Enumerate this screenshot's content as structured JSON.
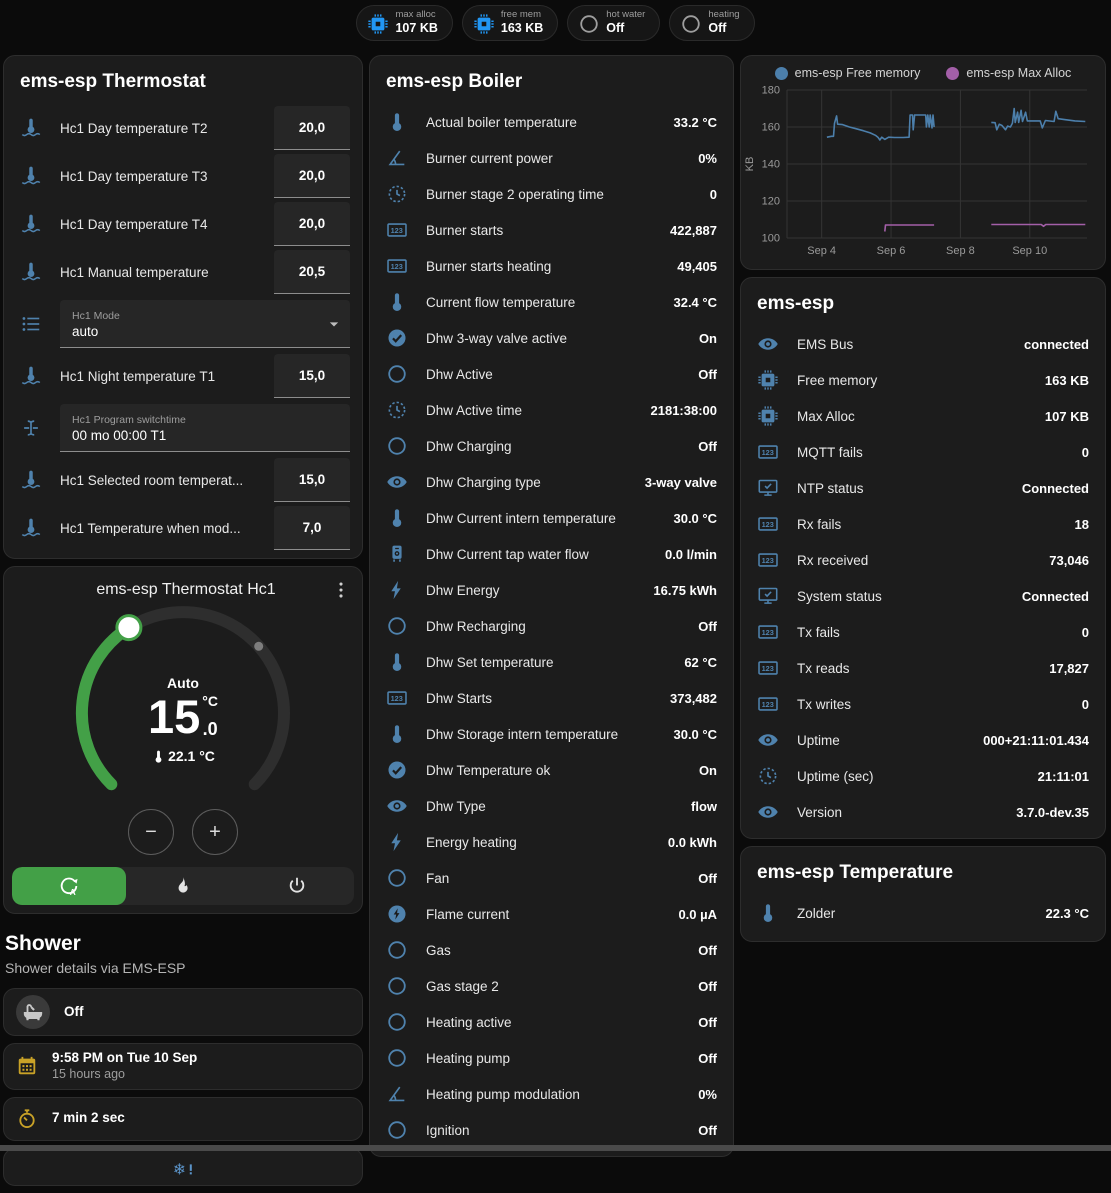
{
  "colors": {
    "accent_green": "#43a047",
    "icon_blue": "#4f82ad",
    "chip_blue": "#2196f3",
    "icon_yellow": "#c9a227",
    "chart_blue": "#4c7fab",
    "chart_purple": "#a35fa8"
  },
  "header": {
    "chips": [
      {
        "icon": "chip",
        "icon_color": "#2196f3",
        "label": "max alloc",
        "value": "107 KB"
      },
      {
        "icon": "chip",
        "icon_color": "#2196f3",
        "label": "free mem",
        "value": "163 KB"
      },
      {
        "icon": "circle",
        "icon_color": "#9e9e9e",
        "label": "hot water",
        "value": "Off"
      },
      {
        "icon": "circle",
        "icon_color": "#9e9e9e",
        "label": "heating",
        "value": "Off"
      }
    ]
  },
  "thermostat": {
    "title": "ems-esp Thermostat",
    "rows_top": [
      {
        "icon": "thermometer-water",
        "label": "Hc1 Day temperature T2",
        "value": "20,0"
      },
      {
        "icon": "thermometer-water",
        "label": "Hc1 Day temperature T3",
        "value": "20,0"
      },
      {
        "icon": "thermometer-water",
        "label": "Hc1 Day temperature T4",
        "value": "20,0"
      },
      {
        "icon": "thermometer-water",
        "label": "Hc1 Manual temperature",
        "value": "20,5"
      }
    ],
    "mode": {
      "label": "Hc1 Mode",
      "value": "auto"
    },
    "rows_mid": [
      {
        "icon": "thermometer-water",
        "label": "Hc1 Night temperature T1",
        "value": "15,0"
      }
    ],
    "switchtime": {
      "label": "Hc1 Program switchtime",
      "value": "00 mo 00:00 T1"
    },
    "rows_bottom": [
      {
        "icon": "thermometer-water",
        "label": "Hc1 Selected room temperat...",
        "value": "15,0"
      },
      {
        "icon": "thermometer-water",
        "label": "Hc1 Temperature when mod...",
        "value": "7,0"
      }
    ]
  },
  "dial": {
    "title": "ems-esp Thermostat Hc1",
    "mode_text": "Auto",
    "target_int": "15",
    "target_unit": "°C",
    "target_dec": ".0",
    "current": "22.1 °C",
    "minus": "−",
    "plus": "+",
    "modes": [
      {
        "icon": "thermostat-auto",
        "active": true
      },
      {
        "icon": "fire",
        "active": false
      },
      {
        "icon": "power",
        "active": false
      }
    ]
  },
  "shower": {
    "title": "Shower",
    "subtitle": "Shower details via EMS-ESP",
    "tiles": [
      {
        "icon": "bathtub",
        "icon_color": "#c8c8c8",
        "icon_bg": true,
        "primary": "Off"
      },
      {
        "icon": "calendar",
        "icon_color": "#c9a227",
        "primary": "9:58 PM on Tue 10 Sep",
        "secondary": "15 hours ago"
      },
      {
        "icon": "timer",
        "icon_color": "#c9a227",
        "primary": "7 min 2 sec"
      }
    ]
  },
  "boiler": {
    "title": "ems-esp Boiler",
    "rows": [
      {
        "icon": "thermometer",
        "label": "Actual boiler temperature",
        "value": "33.2 °C"
      },
      {
        "icon": "angle",
        "label": "Burner current power",
        "value": "0%"
      },
      {
        "icon": "clock",
        "label": "Burner stage 2 operating time",
        "value": "0"
      },
      {
        "icon": "counter",
        "label": "Burner starts",
        "value": "422,887"
      },
      {
        "icon": "counter",
        "label": "Burner starts heating",
        "value": "49,405"
      },
      {
        "icon": "thermometer",
        "label": "Current flow temperature",
        "value": "32.4 °C"
      },
      {
        "icon": "check-circle",
        "label": "Dhw 3-way valve active",
        "value": "On"
      },
      {
        "icon": "circle",
        "label": "Dhw Active",
        "value": "Off"
      },
      {
        "icon": "clock",
        "label": "Dhw Active time",
        "value": "2181:38:00"
      },
      {
        "icon": "circle",
        "label": "Dhw Charging",
        "value": "Off"
      },
      {
        "icon": "eye",
        "label": "Dhw Charging type",
        "value": "3-way valve"
      },
      {
        "icon": "thermometer",
        "label": "Dhw Current intern temperature",
        "value": "30.0 °C"
      },
      {
        "icon": "water-heater",
        "label": "Dhw Current tap water flow",
        "value": "0.0 l/min"
      },
      {
        "icon": "flash",
        "label": "Dhw Energy",
        "value": "16.75 kWh"
      },
      {
        "icon": "circle",
        "label": "Dhw Recharging",
        "value": "Off"
      },
      {
        "icon": "thermometer",
        "label": "Dhw Set temperature",
        "value": "62 °C"
      },
      {
        "icon": "counter",
        "label": "Dhw Starts",
        "value": "373,482"
      },
      {
        "icon": "thermometer",
        "label": "Dhw Storage intern temperature",
        "value": "30.0 °C"
      },
      {
        "icon": "check-circle",
        "label": "Dhw Temperature ok",
        "value": "On"
      },
      {
        "icon": "eye",
        "label": "Dhw Type",
        "value": "flow"
      },
      {
        "icon": "flash",
        "label": "Energy heating",
        "value": "0.0 kWh"
      },
      {
        "icon": "circle",
        "label": "Fan",
        "value": "Off"
      },
      {
        "icon": "flash-circle",
        "label": "Flame current",
        "value": "0.0 µA"
      },
      {
        "icon": "circle",
        "label": "Gas",
        "value": "Off"
      },
      {
        "icon": "circle",
        "label": "Gas stage 2",
        "value": "Off"
      },
      {
        "icon": "circle",
        "label": "Heating active",
        "value": "Off"
      },
      {
        "icon": "circle",
        "label": "Heating pump",
        "value": "Off"
      },
      {
        "icon": "angle",
        "label": "Heating pump modulation",
        "value": "0%"
      },
      {
        "icon": "circle",
        "label": "Ignition",
        "value": "Off"
      }
    ]
  },
  "device": {
    "title": "ems-esp",
    "rows": [
      {
        "icon": "eye",
        "label": "EMS Bus",
        "value": "connected"
      },
      {
        "icon": "chip",
        "label": "Free memory",
        "value": "163 KB"
      },
      {
        "icon": "chip",
        "label": "Max Alloc",
        "value": "107 KB"
      },
      {
        "icon": "counter",
        "label": "MQTT fails",
        "value": "0"
      },
      {
        "icon": "monitor-check",
        "label": "NTP status",
        "value": "Connected"
      },
      {
        "icon": "counter",
        "label": "Rx fails",
        "value": "18"
      },
      {
        "icon": "counter",
        "label": "Rx received",
        "value": "73,046"
      },
      {
        "icon": "monitor-check",
        "label": "System status",
        "value": "Connected"
      },
      {
        "icon": "counter",
        "label": "Tx fails",
        "value": "0"
      },
      {
        "icon": "counter",
        "label": "Tx reads",
        "value": "17,827"
      },
      {
        "icon": "counter",
        "label": "Tx writes",
        "value": "0"
      },
      {
        "icon": "eye",
        "label": "Uptime",
        "value": "000+21:11:01.434"
      },
      {
        "icon": "clock",
        "label": "Uptime (sec)",
        "value": "21:11:01"
      },
      {
        "icon": "eye",
        "label": "Version",
        "value": "3.7.0-dev.35"
      }
    ]
  },
  "temperature": {
    "title": "ems-esp Temperature",
    "rows": [
      {
        "icon": "thermometer",
        "label": "Zolder",
        "value": "22.3 °C"
      }
    ]
  },
  "chart_data": {
    "type": "line",
    "ylabel": "KB",
    "ylim": [
      100,
      180
    ],
    "yticks": [
      100,
      120,
      140,
      160,
      180
    ],
    "xlim": [
      3.0,
      11.65
    ],
    "xticks": [
      {
        "v": 4,
        "label": "Sep 4"
      },
      {
        "v": 6,
        "label": "Sep 6"
      },
      {
        "v": 8,
        "label": "Sep 8"
      },
      {
        "v": 10,
        "label": "Sep 10"
      }
    ],
    "grid": true,
    "legend_position": "top",
    "series": [
      {
        "name": "ems-esp Free memory",
        "color": "#4c7fab",
        "points": [
          [
            4.15,
            154.5
          ],
          [
            4.28,
            155
          ],
          [
            4.34,
            155
          ],
          [
            4.37,
            162
          ],
          [
            4.43,
            166
          ],
          [
            4.46,
            161.5
          ],
          [
            4.6,
            161.3
          ],
          [
            4.8,
            160
          ],
          [
            5.0,
            159
          ],
          [
            5.2,
            158
          ],
          [
            5.4,
            156.8
          ],
          [
            5.55,
            155.5
          ],
          [
            5.62,
            154.5
          ],
          [
            5.68,
            153
          ],
          [
            5.73,
            154.5
          ],
          [
            5.82,
            153.3
          ],
          [
            5.93,
            154.5
          ],
          [
            6.1,
            154.3
          ],
          [
            6.35,
            154.3
          ],
          [
            6.52,
            154.5
          ],
          [
            6.55,
            166.5
          ],
          [
            6.62,
            166.5
          ],
          [
            6.64,
            158.5
          ],
          [
            6.68,
            166.5
          ],
          [
            7.0,
            166.5
          ],
          [
            7.02,
            160
          ],
          [
            7.06,
            166.5
          ],
          [
            7.1,
            160
          ],
          [
            7.13,
            166.5
          ],
          [
            7.18,
            159.5
          ],
          [
            7.21,
            166.5
          ],
          [
            7.24,
            160
          ],
          null,
          [
            8.89,
            162.5
          ],
          [
            9.0,
            162.3
          ],
          [
            9.05,
            158.5
          ],
          [
            9.12,
            161.5
          ],
          [
            9.2,
            160.8
          ],
          [
            9.3,
            158.5
          ],
          [
            9.36,
            160.5
          ],
          [
            9.44,
            160
          ],
          [
            9.5,
            162
          ],
          [
            9.55,
            170
          ],
          [
            9.58,
            162.5
          ],
          [
            9.65,
            168
          ],
          [
            9.68,
            162.5
          ],
          [
            9.75,
            169
          ],
          [
            9.79,
            163
          ],
          [
            9.88,
            168
          ],
          [
            9.93,
            163.3
          ],
          [
            10.1,
            163.3
          ],
          [
            10.3,
            163.3
          ],
          [
            10.36,
            159.5
          ],
          [
            10.45,
            163.5
          ],
          [
            10.7,
            163
          ],
          [
            10.75,
            168.5
          ],
          [
            10.82,
            164.5
          ],
          [
            11.0,
            164
          ],
          [
            11.3,
            163.3
          ],
          [
            11.6,
            163
          ]
        ]
      },
      {
        "name": "ems-esp Max Alloc",
        "color": "#a35fa8",
        "points": [
          [
            5.82,
            103.5
          ],
          [
            5.84,
            107
          ],
          [
            6.5,
            107
          ],
          [
            7.24,
            107
          ],
          null,
          [
            8.89,
            107.3
          ],
          [
            10.33,
            107.3
          ],
          [
            10.4,
            106.3
          ],
          [
            10.46,
            107.3
          ],
          [
            11.6,
            107.3
          ]
        ]
      }
    ]
  }
}
